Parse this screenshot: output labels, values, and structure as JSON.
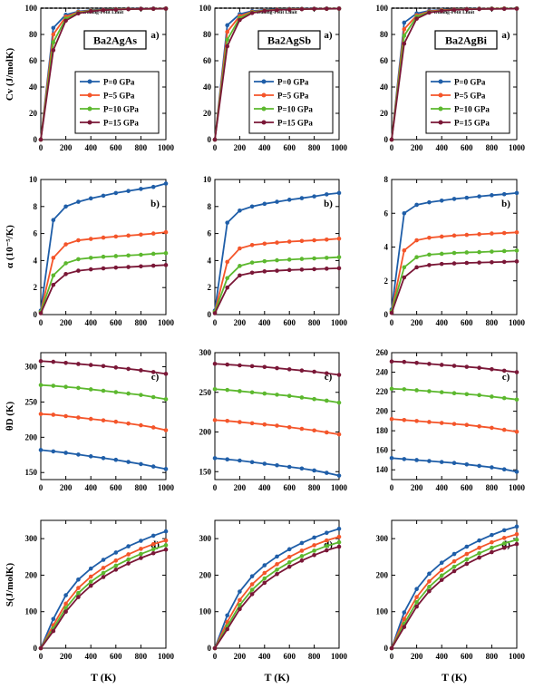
{
  "figure": {
    "ylabels": [
      "Cv (J/molK)",
      "α (10⁻⁵/K)",
      "θD (K)",
      "S(J/molK)"
    ],
    "xlabel": "T (K)",
    "row_letters": [
      "a)",
      "b)",
      "c)",
      "d)"
    ],
    "compounds": [
      "Ba2AgAs",
      "Ba2AgSb",
      "Ba2AgBi"
    ],
    "dulong_label": "Dulong-Petit Limit",
    "legend": [
      "P=0 GPa",
      "P=5 GPa",
      "P=10 GPa",
      "P=15 GPa"
    ],
    "colors": [
      "#1f5ea8",
      "#f4552a",
      "#5cb82e",
      "#7a1737"
    ]
  },
  "chart_data": [
    {
      "type": "line",
      "panel": "Ba2AgAs a)",
      "x": [
        0,
        100,
        200,
        300,
        400,
        500,
        600,
        700,
        800,
        900,
        1000
      ],
      "ylim": [
        0,
        100
      ],
      "yticks": [
        0,
        20,
        40,
        60,
        80,
        100
      ],
      "series": [
        {
          "name": "P=0 GPa",
          "values": [
            0,
            85,
            95,
            97.5,
            98.5,
            99,
            99.3,
            99.5,
            99.6,
            99.7,
            99.8
          ]
        },
        {
          "name": "P=5 GPa",
          "values": [
            0,
            80,
            93.5,
            97,
            98.2,
            98.8,
            99.1,
            99.4,
            99.5,
            99.6,
            99.7
          ]
        },
        {
          "name": "P=10 GPa",
          "values": [
            0,
            74,
            92,
            96.5,
            98,
            98.6,
            99,
            99.3,
            99.4,
            99.5,
            99.6
          ]
        },
        {
          "name": "P=15 GPa",
          "values": [
            0,
            68,
            90.5,
            96,
            97.7,
            98.5,
            98.9,
            99.2,
            99.4,
            99.5,
            99.6
          ]
        }
      ]
    },
    {
      "type": "line",
      "panel": "Ba2AgSb a)",
      "x": [
        0,
        100,
        200,
        300,
        400,
        500,
        600,
        700,
        800,
        900,
        1000
      ],
      "ylim": [
        0,
        100
      ],
      "yticks": [
        0,
        20,
        40,
        60,
        80,
        100
      ],
      "series": [
        {
          "name": "P=0 GPa",
          "values": [
            0,
            87,
            95.5,
            97.8,
            98.7,
            99.1,
            99.4,
            99.5,
            99.6,
            99.7,
            99.8
          ]
        },
        {
          "name": "P=5 GPa",
          "values": [
            0,
            82,
            94,
            97.2,
            98.3,
            98.9,
            99.2,
            99.4,
            99.5,
            99.6,
            99.7
          ]
        },
        {
          "name": "P=10 GPa",
          "values": [
            0,
            76,
            92.5,
            96.8,
            98.1,
            98.7,
            99.1,
            99.3,
            99.4,
            99.5,
            99.6
          ]
        },
        {
          "name": "P=15 GPa",
          "values": [
            0,
            71,
            91,
            96.3,
            97.9,
            98.6,
            99,
            99.2,
            99.4,
            99.5,
            99.6
          ]
        }
      ]
    },
    {
      "type": "line",
      "panel": "Ba2AgBi a)",
      "x": [
        0,
        100,
        200,
        300,
        400,
        500,
        600,
        700,
        800,
        900,
        1000
      ],
      "ylim": [
        0,
        100
      ],
      "yticks": [
        0,
        20,
        40,
        60,
        80,
        100
      ],
      "series": [
        {
          "name": "P=0 GPa",
          "values": [
            0,
            89,
            96,
            98,
            98.8,
            99.2,
            99.4,
            99.6,
            99.7,
            99.7,
            99.8
          ]
        },
        {
          "name": "P=5 GPa",
          "values": [
            0,
            84,
            94.5,
            97.5,
            98.5,
            99,
            99.3,
            99.5,
            99.6,
            99.7,
            99.7
          ]
        },
        {
          "name": "P=10 GPa",
          "values": [
            0,
            79,
            93.5,
            97,
            98.2,
            98.8,
            99.2,
            99.4,
            99.5,
            99.6,
            99.7
          ]
        },
        {
          "name": "P=15 GPa",
          "values": [
            0,
            73,
            92,
            96.6,
            98,
            98.7,
            99.1,
            99.3,
            99.4,
            99.5,
            99.6
          ]
        }
      ]
    },
    {
      "type": "line",
      "panel": "Ba2AgAs b)",
      "x": [
        0,
        100,
        200,
        300,
        400,
        500,
        600,
        700,
        800,
        900,
        1000
      ],
      "ylim": [
        0,
        10
      ],
      "yticks": [
        0,
        2,
        4,
        6,
        8,
        10
      ],
      "series": [
        {
          "name": "P=0 GPa",
          "values": [
            0.3,
            7.0,
            8.0,
            8.35,
            8.6,
            8.8,
            9.0,
            9.15,
            9.3,
            9.45,
            9.7
          ]
        },
        {
          "name": "P=5 GPa",
          "values": [
            0.2,
            4.2,
            5.2,
            5.5,
            5.6,
            5.7,
            5.78,
            5.85,
            5.92,
            6.0,
            6.1
          ]
        },
        {
          "name": "P=10 GPa",
          "values": [
            0.2,
            2.9,
            3.8,
            4.1,
            4.2,
            4.28,
            4.33,
            4.38,
            4.43,
            4.5,
            4.55
          ]
        },
        {
          "name": "P=15 GPa",
          "values": [
            0.1,
            2.2,
            3.0,
            3.25,
            3.35,
            3.42,
            3.48,
            3.52,
            3.57,
            3.62,
            3.67
          ]
        }
      ]
    },
    {
      "type": "line",
      "panel": "Ba2AgSb b)",
      "x": [
        0,
        100,
        200,
        300,
        400,
        500,
        600,
        700,
        800,
        900,
        1000
      ],
      "ylim": [
        0,
        10
      ],
      "yticks": [
        0,
        2,
        4,
        6,
        8,
        10
      ],
      "series": [
        {
          "name": "P=0 GPa",
          "values": [
            0.3,
            6.8,
            7.7,
            8.0,
            8.2,
            8.35,
            8.5,
            8.62,
            8.75,
            8.9,
            9.0
          ]
        },
        {
          "name": "P=5 GPa",
          "values": [
            0.2,
            3.9,
            4.9,
            5.15,
            5.25,
            5.33,
            5.4,
            5.45,
            5.5,
            5.55,
            5.62
          ]
        },
        {
          "name": "P=10 GPa",
          "values": [
            0.2,
            2.7,
            3.6,
            3.85,
            3.95,
            4.02,
            4.07,
            4.12,
            4.16,
            4.2,
            4.25
          ]
        },
        {
          "name": "P=15 GPa",
          "values": [
            0.1,
            2.0,
            2.9,
            3.1,
            3.2,
            3.25,
            3.3,
            3.33,
            3.36,
            3.4,
            3.43
          ]
        }
      ]
    },
    {
      "type": "line",
      "panel": "Ba2AgBi b)",
      "x": [
        0,
        100,
        200,
        300,
        400,
        500,
        600,
        700,
        800,
        900,
        1000
      ],
      "ylim": [
        0,
        8
      ],
      "yticks": [
        0,
        2,
        4,
        6,
        8
      ],
      "series": [
        {
          "name": "P=0 GPa",
          "values": [
            0.3,
            6.0,
            6.5,
            6.65,
            6.75,
            6.85,
            6.92,
            7.0,
            7.07,
            7.13,
            7.2
          ]
        },
        {
          "name": "P=5 GPa",
          "values": [
            0.2,
            3.8,
            4.4,
            4.55,
            4.62,
            4.68,
            4.72,
            4.76,
            4.8,
            4.83,
            4.87
          ]
        },
        {
          "name": "P=10 GPa",
          "values": [
            0.2,
            2.8,
            3.4,
            3.55,
            3.6,
            3.65,
            3.68,
            3.7,
            3.73,
            3.76,
            3.79
          ]
        },
        {
          "name": "P=15 GPa",
          "values": [
            0.1,
            2.2,
            2.8,
            2.93,
            3.0,
            3.03,
            3.06,
            3.08,
            3.1,
            3.12,
            3.15
          ]
        }
      ]
    },
    {
      "type": "line",
      "panel": "Ba2AgAs c)",
      "x": [
        0,
        100,
        200,
        300,
        400,
        500,
        600,
        700,
        800,
        900,
        1000
      ],
      "ylim": [
        140,
        320
      ],
      "yticks": [
        150,
        200,
        250,
        300
      ],
      "series": [
        {
          "name": "P=0 GPa",
          "values": [
            182,
            180,
            178,
            175.5,
            173,
            170.5,
            168,
            165,
            162,
            158.5,
            155
          ]
        },
        {
          "name": "P=5 GPa",
          "values": [
            233,
            232,
            230,
            228,
            226,
            224,
            222,
            219.5,
            217,
            214,
            210
          ]
        },
        {
          "name": "P=10 GPa",
          "values": [
            274,
            273,
            271.5,
            270,
            268,
            266,
            264,
            262,
            260,
            257,
            254
          ]
        },
        {
          "name": "P=15 GPa",
          "values": [
            308,
            307,
            305.5,
            304,
            302.5,
            301,
            299,
            297,
            295,
            292.5,
            290
          ]
        }
      ]
    },
    {
      "type": "line",
      "panel": "Ba2AgSb c)",
      "x": [
        0,
        100,
        200,
        300,
        400,
        500,
        600,
        700,
        800,
        900,
        1000
      ],
      "ylim": [
        140,
        300
      ],
      "yticks": [
        150,
        200,
        250,
        300
      ],
      "series": [
        {
          "name": "P=0 GPa",
          "values": [
            167,
            165.5,
            164,
            162,
            160,
            158,
            156,
            154,
            151.5,
            148.5,
            145
          ]
        },
        {
          "name": "P=5 GPa",
          "values": [
            215,
            214,
            212.5,
            211,
            209.5,
            208,
            206,
            204,
            202,
            199.5,
            197
          ]
        },
        {
          "name": "P=10 GPa",
          "values": [
            254,
            253,
            251.5,
            250,
            248.5,
            247,
            245.5,
            243.5,
            241.5,
            239.5,
            237
          ]
        },
        {
          "name": "P=15 GPa",
          "values": [
            286,
            285,
            284,
            283,
            282,
            280.5,
            279,
            277.5,
            276,
            274,
            272
          ]
        }
      ]
    },
    {
      "type": "line",
      "panel": "Ba2AgBi c)",
      "x": [
        0,
        100,
        200,
        300,
        400,
        500,
        600,
        700,
        800,
        900,
        1000
      ],
      "ylim": [
        130,
        260
      ],
      "yticks": [
        140,
        160,
        180,
        200,
        220,
        240,
        260
      ],
      "series": [
        {
          "name": "P=0 GPa",
          "values": [
            152,
            151,
            150,
            149,
            148,
            147,
            145.5,
            144,
            142.5,
            140.5,
            138
          ]
        },
        {
          "name": "P=5 GPa",
          "values": [
            192,
            191,
            190,
            189,
            188,
            187,
            186,
            184.5,
            183,
            181,
            179
          ]
        },
        {
          "name": "P=10 GPa",
          "values": [
            223,
            222.5,
            221.5,
            220.5,
            219.5,
            218.5,
            217.5,
            216.5,
            215,
            213.5,
            212
          ]
        },
        {
          "name": "P=15 GPa",
          "values": [
            251,
            250.5,
            249.5,
            248.5,
            247.5,
            246.5,
            245.5,
            244.5,
            243,
            241.5,
            240
          ]
        }
      ]
    },
    {
      "type": "line",
      "panel": "Ba2AgAs d)",
      "x": [
        0,
        100,
        200,
        300,
        400,
        500,
        600,
        700,
        800,
        900,
        1000
      ],
      "ylim": [
        0,
        350
      ],
      "yticks": [
        0,
        100,
        200,
        300
      ],
      "series": [
        {
          "name": "P=0 GPa",
          "values": [
            0,
            80,
            145,
            188,
            218,
            242,
            262,
            279,
            294,
            308,
            320
          ]
        },
        {
          "name": "P=5 GPa",
          "values": [
            0,
            63,
            122,
            165,
            196,
            220,
            240,
            257,
            272,
            285,
            295
          ]
        },
        {
          "name": "P=10 GPa",
          "values": [
            0,
            54,
            110,
            151,
            182,
            206,
            226,
            243,
            258,
            271,
            282
          ]
        },
        {
          "name": "P=15 GPa",
          "values": [
            0,
            47,
            100,
            140,
            171,
            195,
            215,
            232,
            247,
            260,
            270
          ]
        }
      ]
    },
    {
      "type": "line",
      "panel": "Ba2AgSb d)",
      "x": [
        0,
        100,
        200,
        300,
        400,
        500,
        600,
        700,
        800,
        900,
        1000
      ],
      "ylim": [
        0,
        350
      ],
      "yticks": [
        0,
        100,
        200,
        300
      ],
      "series": [
        {
          "name": "P=0 GPa",
          "values": [
            0,
            90,
            155,
            197,
            227,
            251,
            271,
            288,
            303,
            316,
            327
          ]
        },
        {
          "name": "P=5 GPa",
          "values": [
            0,
            72,
            132,
            175,
            206,
            230,
            250,
            267,
            282,
            295,
            305
          ]
        },
        {
          "name": "P=10 GPa",
          "values": [
            0,
            60,
            118,
            160,
            191,
            215,
            235,
            252,
            267,
            280,
            290
          ]
        },
        {
          "name": "P=15 GPa",
          "values": [
            0,
            52,
            107,
            148,
            179,
            203,
            223,
            240,
            255,
            268,
            278
          ]
        }
      ]
    },
    {
      "type": "line",
      "panel": "Ba2AgBi d)",
      "x": [
        0,
        100,
        200,
        300,
        400,
        500,
        600,
        700,
        800,
        900,
        1000
      ],
      "ylim": [
        0,
        350
      ],
      "yticks": [
        0,
        100,
        200,
        300
      ],
      "series": [
        {
          "name": "P=0 GPa",
          "values": [
            0,
            98,
            162,
            204,
            234,
            258,
            278,
            295,
            310,
            323,
            333
          ]
        },
        {
          "name": "P=5 GPa",
          "values": [
            0,
            80,
            140,
            183,
            214,
            238,
            258,
            275,
            290,
            302,
            312
          ]
        },
        {
          "name": "P=10 GPa",
          "values": [
            0,
            67,
            126,
            168,
            199,
            223,
            243,
            260,
            275,
            287,
            297
          ]
        },
        {
          "name": "P=15 GPa",
          "values": [
            0,
            58,
            114,
            156,
            187,
            211,
            231,
            248,
            263,
            275,
            285
          ]
        }
      ]
    }
  ]
}
